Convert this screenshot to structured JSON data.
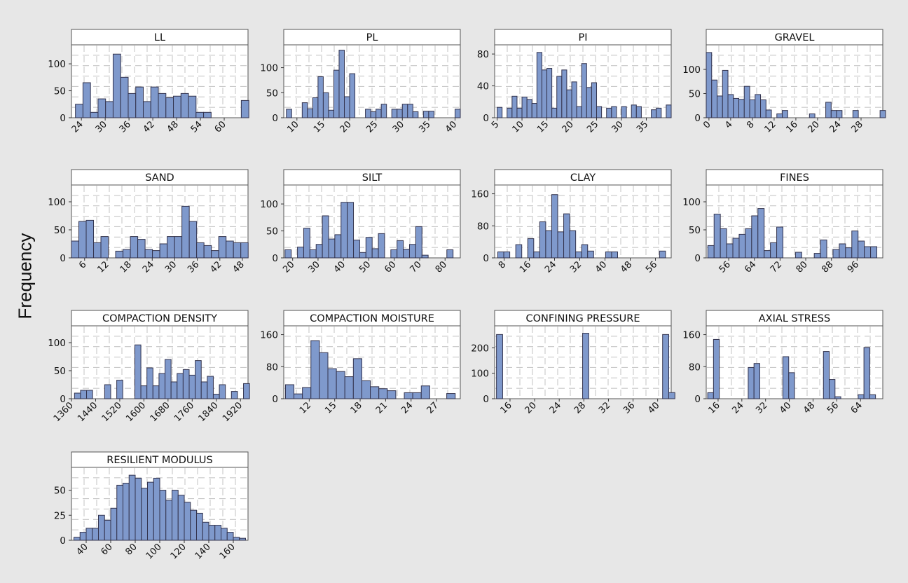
{
  "figure": {
    "ylabel": "Frequency"
  },
  "style": {
    "bar_fill": "#7f99cc",
    "bar_stroke": "#33334d",
    "panel_bg": "#ffffff",
    "page_bg": "#e7e7e7",
    "header_bg": "#ffffff",
    "grid": "#c8c8c8"
  },
  "chart_data": [
    {
      "type": "bar",
      "title": "LL",
      "xlim": [
        21.5,
        66
      ],
      "ylim": [
        0,
        130
      ],
      "xticks": [
        24,
        30,
        36,
        42,
        48,
        54,
        60
      ],
      "yticks": [
        0,
        50,
        100
      ],
      "bin_start": 22.5,
      "bin_width": 1.9,
      "values": [
        25,
        65,
        10,
        35,
        30,
        118,
        75,
        45,
        57,
        30,
        57,
        45,
        37,
        40,
        45,
        40,
        10,
        10,
        0,
        0,
        0,
        0,
        32
      ]
    },
    {
      "type": "bar",
      "title": "PL",
      "xlim": [
        7.5,
        41
      ],
      "ylim": [
        0,
        140
      ],
      "xticks": [
        10,
        15,
        20,
        25,
        30,
        35,
        40
      ],
      "yticks": [
        0,
        50,
        100
      ],
      "bin_start": 8,
      "bin_width": 1.0,
      "values": [
        17,
        0,
        0,
        30,
        18,
        40,
        82,
        50,
        15,
        95,
        135,
        42,
        88,
        0,
        0,
        17,
        12,
        17,
        27,
        0,
        17,
        17,
        27,
        27,
        12,
        0,
        13,
        13,
        0,
        0,
        0,
        0,
        17
      ]
    },
    {
      "type": "bar",
      "title": "PI",
      "xlim": [
        4.5,
        40
      ],
      "ylim": [
        0,
        88
      ],
      "xticks": [
        5,
        10,
        15,
        20,
        25,
        30,
        35
      ],
      "yticks": [
        0,
        40,
        80
      ],
      "bin_start": 5,
      "bin_width": 1.0,
      "values": [
        13,
        0,
        12,
        27,
        12,
        26,
        23,
        18,
        82,
        60,
        62,
        12,
        52,
        60,
        35,
        45,
        14,
        68,
        38,
        44,
        14,
        0,
        12,
        14,
        0,
        14,
        0,
        16,
        14,
        0,
        0,
        10,
        12,
        0,
        16
      ]
    },
    {
      "type": "bar",
      "title": "GRAVEL",
      "xlim": [
        -0.5,
        32
      ],
      "ylim": [
        0,
        145
      ],
      "xticks": [
        0,
        4,
        8,
        12,
        16,
        20,
        24,
        28
      ],
      "yticks": [
        0,
        50,
        100
      ],
      "bin_start": -0.5,
      "bin_width": 1.0,
      "values": [
        135,
        78,
        45,
        98,
        48,
        40,
        38,
        65,
        37,
        48,
        37,
        16,
        0,
        8,
        15,
        0,
        0,
        0,
        0,
        8,
        0,
        0,
        32,
        15,
        15,
        0,
        0,
        15,
        0,
        0,
        0,
        0,
        15
      ]
    },
    {
      "type": "bar",
      "title": "SAND",
      "xlim": [
        2.5,
        49.5
      ],
      "ylim": [
        0,
        125
      ],
      "xticks": [
        6,
        12,
        18,
        24,
        30,
        36,
        42,
        48
      ],
      "yticks": [
        0,
        50,
        100
      ],
      "bin_start": 2.5,
      "bin_width": 1.96,
      "values": [
        30,
        65,
        67,
        27,
        38,
        0,
        12,
        15,
        38,
        33,
        15,
        13,
        25,
        38,
        38,
        92,
        65,
        27,
        22,
        13,
        38,
        30,
        27,
        27
      ]
    },
    {
      "type": "bar",
      "title": "SILT",
      "xlim": [
        16.5,
        86
      ],
      "ylim": [
        0,
        130
      ],
      "xticks": [
        20,
        30,
        40,
        50,
        60,
        70,
        80
      ],
      "yticks": [
        0,
        50,
        100
      ],
      "bin_start": 17,
      "bin_width": 2.45,
      "values": [
        15,
        0,
        20,
        55,
        15,
        25,
        78,
        35,
        43,
        103,
        103,
        33,
        10,
        38,
        17,
        45,
        0,
        15,
        32,
        16,
        25,
        58,
        5,
        0,
        0,
        0,
        15
      ]
    },
    {
      "type": "bar",
      "title": "CLAY",
      "xlim": [
        5,
        61
      ],
      "ylim": [
        0,
        175
      ],
      "xticks": [
        8,
        16,
        24,
        32,
        40,
        48,
        56
      ],
      "yticks": [
        0,
        80,
        160
      ],
      "bin_start": 6,
      "bin_width": 1.9,
      "values": [
        15,
        15,
        0,
        33,
        0,
        48,
        15,
        90,
        68,
        158,
        65,
        110,
        68,
        15,
        33,
        17,
        0,
        0,
        15,
        15,
        0,
        0,
        0,
        0,
        0,
        0,
        0,
        17
      ]
    },
    {
      "type": "bar",
      "title": "FINES",
      "xlim": [
        49,
        104
      ],
      "ylim": [
        0,
        125
      ],
      "xticks": [
        56,
        64,
        72,
        80,
        88,
        96
      ],
      "yticks": [
        0,
        50,
        100
      ],
      "bin_start": 49.5,
      "bin_width": 1.95,
      "values": [
        22,
        78,
        52,
        25,
        35,
        42,
        52,
        75,
        88,
        13,
        27,
        55,
        0,
        0,
        10,
        0,
        0,
        8,
        32,
        0,
        15,
        25,
        18,
        48,
        30,
        20,
        20
      ]
    },
    {
      "type": "bar",
      "title": "COMPACTION DENSITY",
      "xlim": [
        1360,
        1945
      ],
      "ylim": [
        0,
        125
      ],
      "xticks": [
        1360,
        1440,
        1520,
        1600,
        1680,
        1760,
        1840,
        1920
      ],
      "yticks": [
        0,
        50,
        100
      ],
      "bin_start": 1370,
      "bin_width": 20,
      "values": [
        10,
        15,
        15,
        0,
        0,
        25,
        0,
        33,
        0,
        0,
        96,
        23,
        55,
        23,
        45,
        70,
        30,
        45,
        52,
        42,
        68,
        30,
        40,
        8,
        25,
        0,
        13,
        0,
        27
      ]
    },
    {
      "type": "bar",
      "title": "COMPACTION MOISTURE",
      "xlim": [
        9,
        29.8
      ],
      "ylim": [
        0,
        175
      ],
      "xticks": [
        12,
        15,
        18,
        21,
        24,
        27
      ],
      "yticks": [
        0,
        80,
        160
      ],
      "bin_start": 9.2,
      "bin_width": 1.0,
      "values": [
        35,
        12,
        28,
        145,
        115,
        75,
        68,
        55,
        100,
        45,
        30,
        25,
        20,
        0,
        15,
        15,
        32,
        0,
        0,
        13
      ]
    },
    {
      "type": "bar",
      "title": "CONFINING PRESSURE",
      "xlim": [
        13.5,
        42.2
      ],
      "ylim": [
        0,
        275
      ],
      "xticks": [
        16,
        20,
        24,
        28,
        32,
        36,
        40
      ],
      "yticks": [
        0,
        100,
        200
      ],
      "bin_start": 13.8,
      "bin_width": 1.0,
      "values": [
        252,
        0,
        0,
        0,
        0,
        0,
        0,
        0,
        0,
        0,
        0,
        0,
        0,
        0,
        257,
        0,
        0,
        0,
        0,
        0,
        0,
        0,
        0,
        0,
        0,
        0,
        0,
        252,
        24
      ]
    },
    {
      "type": "bar",
      "title": "AXIAL STRESS",
      "xlim": [
        12,
        71.5
      ],
      "ylim": [
        0,
        175
      ],
      "xticks": [
        16,
        24,
        32,
        40,
        48,
        56,
        64
      ],
      "yticks": [
        0,
        80,
        160
      ],
      "bin_start": 12.5,
      "bin_width": 1.95,
      "values": [
        15,
        148,
        0,
        0,
        0,
        0,
        0,
        78,
        88,
        0,
        0,
        0,
        0,
        105,
        65,
        0,
        0,
        0,
        0,
        0,
        118,
        48,
        5,
        0,
        0,
        0,
        10,
        128,
        10
      ]
    },
    {
      "type": "bar",
      "title": "RESILIENT MODULUS",
      "xlim": [
        28,
        172
      ],
      "ylim": [
        0,
        70
      ],
      "xticks": [
        40,
        60,
        80,
        100,
        120,
        140,
        160
      ],
      "yticks": [
        0,
        25,
        50
      ],
      "bin_start": 30,
      "bin_width": 5,
      "values": [
        3,
        8,
        12,
        12,
        25,
        20,
        32,
        55,
        57,
        65,
        62,
        52,
        58,
        62,
        50,
        40,
        50,
        45,
        38,
        30,
        27,
        18,
        15,
        15,
        12,
        8,
        3,
        2
      ]
    }
  ]
}
